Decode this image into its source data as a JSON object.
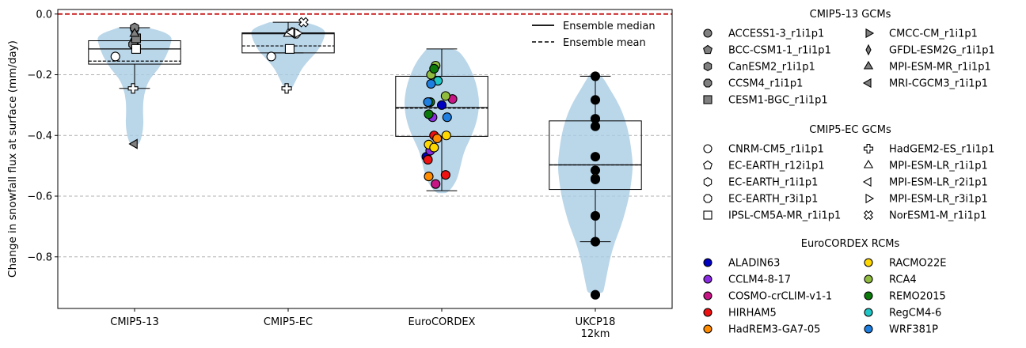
{
  "chart_data": {
    "type": "violin",
    "ylabel": "Change in snowfall flux at surface (mm/day)",
    "categories": [
      "CMIP5-13",
      "CMIP5-EC",
      "EuroCORDEX",
      "UKCP18\n12km"
    ],
    "ylim": [
      -0.97,
      0.015
    ],
    "yticks": [
      0.0,
      -0.2,
      -0.4,
      -0.6,
      -0.8
    ],
    "ytick_labels": [
      "0.0",
      "−0.2",
      "−0.4",
      "−0.6",
      "−0.8"
    ],
    "grid": "horizontal dashed",
    "reference_line": {
      "y": 0.0,
      "color": "#c00000",
      "style": "dashed"
    },
    "violin_color": "#a9cce3",
    "stats_legend": {
      "median_label": "Ensemble median",
      "mean_label": "Ensemble mean",
      "placement": "top-right"
    },
    "groups": [
      {
        "category": "CMIP5-13",
        "violin": {
          "min": -0.43,
          "max": -0.045,
          "widths": [
            [
              -0.045,
              0.22
            ],
            [
              -0.07,
              0.5
            ],
            [
              -0.1,
              0.48
            ],
            [
              -0.14,
              0.42
            ],
            [
              -0.18,
              0.32
            ],
            [
              -0.22,
              0.18
            ],
            [
              -0.27,
              0.12
            ],
            [
              -0.32,
              0.11
            ],
            [
              -0.36,
              0.12
            ],
            [
              -0.4,
              0.1
            ],
            [
              -0.43,
              0.06
            ]
          ]
        },
        "box": {
          "q1": -0.165,
          "median": -0.115,
          "q3": -0.088,
          "whisker_low": -0.245,
          "whisker_high": -0.045,
          "mean": -0.155
        },
        "points": [
          {
            "model": "ACCESS1-3_r1i1p1",
            "y": -0.09,
            "dx": 0.0
          },
          {
            "model": "BCC-CSM1-1_r1i1p1",
            "y": -0.05,
            "dx": 0.0
          },
          {
            "model": "CanESM2_r1i1p1",
            "y": -0.045,
            "dx": 0.0
          },
          {
            "model": "CCSM4_r1i1p1",
            "y": -0.1,
            "dx": -0.02
          },
          {
            "model": "CESM1-BGC_r1i1p1",
            "y": -0.08,
            "dx": 0.02
          },
          {
            "model": "MPI-ESM-MR_r1i1p1",
            "y": -0.065,
            "dx": 0.0
          },
          {
            "model": "MRI-CGCM3_r1i1p1",
            "y": -0.428,
            "dx": 0.0
          },
          {
            "model": "CNRM-CM5_r1i1p1",
            "y": -0.14,
            "dx": -0.25
          },
          {
            "model": "IPSL-CM5A-MR_r1i1p1",
            "y": -0.115,
            "dx": 0.02
          },
          {
            "model": "HadGEM2-ES_r1i1p1",
            "y": -0.245,
            "dx": -0.02
          }
        ]
      },
      {
        "category": "CMIP5-EC",
        "violin": {
          "min": -0.25,
          "max": -0.027,
          "widths": [
            [
              -0.027,
              0.25
            ],
            [
              -0.05,
              0.5
            ],
            [
              -0.08,
              0.48
            ],
            [
              -0.12,
              0.4
            ],
            [
              -0.15,
              0.28
            ],
            [
              -0.18,
              0.18
            ],
            [
              -0.21,
              0.12
            ],
            [
              -0.25,
              0.04
            ]
          ]
        },
        "box": {
          "q1": -0.128,
          "median": -0.065,
          "q3": -0.062,
          "whisker_low": -0.128,
          "whisker_high": -0.027,
          "mean": -0.105
        },
        "points": [
          {
            "model": "CNRM-CM5_r1i1p1",
            "y": -0.14,
            "dx": -0.22
          },
          {
            "model": "EC-EARTH_r12i1p1",
            "y": -0.06,
            "dx": 0.05
          },
          {
            "model": "EC-EARTH_r1i1p1",
            "y": -0.063,
            "dx": 0.08
          },
          {
            "model": "EC-EARTH_r3i1p1",
            "y": -0.065,
            "dx": 0.1
          },
          {
            "model": "IPSL-CM5A-MR_r1i1p1",
            "y": -0.115,
            "dx": 0.02
          },
          {
            "model": "HadGEM2-ES_r1i1p1",
            "y": -0.245,
            "dx": -0.02
          },
          {
            "model": "MPI-ESM-LR_r1i1p1",
            "y": -0.065,
            "dx": 0.0
          },
          {
            "model": "MPI-ESM-LR_r2i1p1",
            "y": -0.06,
            "dx": 0.04
          },
          {
            "model": "MPI-ESM-LR_r3i1p1",
            "y": -0.063,
            "dx": 0.12
          },
          {
            "model": "NorESM1-M_r1i1p1",
            "y": -0.027,
            "dx": 0.2
          }
        ]
      },
      {
        "category": "EuroCORDEX",
        "violin": {
          "min": -0.59,
          "max": -0.115,
          "widths": [
            [
              -0.115,
              0.2
            ],
            [
              -0.15,
              0.32
            ],
            [
              -0.2,
              0.42
            ],
            [
              -0.25,
              0.48
            ],
            [
              -0.3,
              0.5
            ],
            [
              -0.35,
              0.47
            ],
            [
              -0.4,
              0.4
            ],
            [
              -0.45,
              0.3
            ],
            [
              -0.5,
              0.25
            ],
            [
              -0.55,
              0.2
            ],
            [
              -0.59,
              0.08
            ]
          ]
        },
        "box": {
          "q1": -0.403,
          "median": -0.308,
          "q3": -0.205,
          "whisker_low": -0.582,
          "whisker_high": -0.115,
          "mean": -0.31
        },
        "points": [
          {
            "model": "ALADIN63",
            "y": -0.47,
            "dx": -0.2
          },
          {
            "model": "ALADIN63",
            "y": -0.3,
            "dx": 0.0
          },
          {
            "model": "CCLM4-8-17",
            "y": -0.34,
            "dx": -0.12
          },
          {
            "model": "CCLM4-8-17",
            "y": -0.45,
            "dx": -0.15
          },
          {
            "model": "COSMO-crCLIM-v1-1",
            "y": -0.56,
            "dx": -0.08
          },
          {
            "model": "COSMO-crCLIM-v1-1",
            "y": -0.28,
            "dx": 0.14
          },
          {
            "model": "HIRHAM5",
            "y": -0.48,
            "dx": -0.18
          },
          {
            "model": "HIRHAM5",
            "y": -0.53,
            "dx": 0.05
          },
          {
            "model": "HIRHAM5",
            "y": -0.4,
            "dx": -0.1
          },
          {
            "model": "HadREM3-GA7-05",
            "y": -0.535,
            "dx": -0.17
          },
          {
            "model": "HadREM3-GA7-05",
            "y": -0.41,
            "dx": -0.06
          },
          {
            "model": "RACMO22E",
            "y": -0.43,
            "dx": -0.17
          },
          {
            "model": "RACMO22E",
            "y": -0.4,
            "dx": 0.06
          },
          {
            "model": "RACMO22E",
            "y": -0.44,
            "dx": -0.1
          },
          {
            "model": "RCA4",
            "y": -0.2,
            "dx": -0.14
          },
          {
            "model": "RCA4",
            "y": -0.27,
            "dx": 0.05
          },
          {
            "model": "RCA4",
            "y": -0.17,
            "dx": -0.08
          },
          {
            "model": "REMO2015",
            "y": -0.33,
            "dx": -0.17
          },
          {
            "model": "REMO2015",
            "y": -0.29,
            "dx": -0.15
          },
          {
            "model": "REMO2015",
            "y": -0.18,
            "dx": -0.1
          },
          {
            "model": "RegCM4-6",
            "y": -0.22,
            "dx": -0.05
          },
          {
            "model": "WRF381P",
            "y": -0.23,
            "dx": -0.14
          },
          {
            "model": "WRF381P",
            "y": -0.29,
            "dx": -0.18
          },
          {
            "model": "WRF381P",
            "y": -0.34,
            "dx": 0.07
          }
        ]
      },
      {
        "category": "UKCP18\n12km",
        "violin": {
          "min": -0.92,
          "max": -0.2,
          "widths": [
            [
              -0.2,
              0.08
            ],
            [
              -0.25,
              0.2
            ],
            [
              -0.3,
              0.32
            ],
            [
              -0.35,
              0.4
            ],
            [
              -0.4,
              0.45
            ],
            [
              -0.45,
              0.48
            ],
            [
              -0.5,
              0.5
            ],
            [
              -0.55,
              0.48
            ],
            [
              -0.6,
              0.45
            ],
            [
              -0.65,
              0.4
            ],
            [
              -0.7,
              0.34
            ],
            [
              -0.75,
              0.26
            ],
            [
              -0.8,
              0.2
            ],
            [
              -0.85,
              0.16
            ],
            [
              -0.9,
              0.12
            ],
            [
              -0.92,
              0.1
            ]
          ]
        },
        "box": {
          "q1": -0.578,
          "median": -0.497,
          "q3": -0.352,
          "whisker_low": -0.75,
          "whisker_high": -0.205,
          "mean": -0.497
        },
        "points": [
          {
            "model": "UKCP18 member",
            "y": -0.205,
            "dx": 0.0
          },
          {
            "model": "UKCP18 member",
            "y": -0.283,
            "dx": 0.0
          },
          {
            "model": "UKCP18 member",
            "y": -0.345,
            "dx": 0.0
          },
          {
            "model": "UKCP18 member",
            "y": -0.37,
            "dx": 0.0
          },
          {
            "model": "UKCP18 member",
            "y": -0.47,
            "dx": 0.0
          },
          {
            "model": "UKCP18 member",
            "y": -0.515,
            "dx": 0.0
          },
          {
            "model": "UKCP18 member",
            "y": -0.542,
            "dx": 0.0,
            "color": "#ff8c00"
          },
          {
            "model": "UKCP18 member",
            "y": -0.545,
            "dx": 0.0
          },
          {
            "model": "UKCP18 member",
            "y": -0.665,
            "dx": 0.0
          },
          {
            "model": "UKCP18 member",
            "y": -0.75,
            "dx": 0.0
          },
          {
            "model": "UKCP18 member",
            "y": -0.925,
            "dx": 0.0
          }
        ]
      }
    ],
    "legend": {
      "placement": "right",
      "sections": [
        {
          "title": "CMIP5-13 GCMs",
          "items": [
            {
              "label": "ACCESS1-3_r1i1p1",
              "marker": "circle",
              "fill": "#808080"
            },
            {
              "label": "BCC-CSM1-1_r1i1p1",
              "marker": "pentagon",
              "fill": "#808080"
            },
            {
              "label": "CanESM2_r1i1p1",
              "marker": "hexagon",
              "fill": "#808080"
            },
            {
              "label": "CCSM4_r1i1p1",
              "marker": "octagon",
              "fill": "#808080"
            },
            {
              "label": "CESM1-BGC_r1i1p1",
              "marker": "square",
              "fill": "#808080"
            },
            {
              "label": "CMCC-CM_r1i1p1",
              "marker": "triangle-right",
              "fill": "#808080"
            },
            {
              "label": "GFDL-ESM2G_r1i1p1",
              "marker": "thin-diamond",
              "fill": "#808080"
            },
            {
              "label": "MPI-ESM-MR_r1i1p1",
              "marker": "triangle-up",
              "fill": "#808080"
            },
            {
              "label": "MRI-CGCM3_r1i1p1",
              "marker": "triangle-left",
              "fill": "#808080"
            }
          ]
        },
        {
          "title": "CMIP5-EC GCMs",
          "items": [
            {
              "label": "CNRM-CM5_r1i1p1",
              "marker": "circle",
              "fill": "#ffffff"
            },
            {
              "label": "EC-EARTH_r12i1p1",
              "marker": "pentagon",
              "fill": "#ffffff"
            },
            {
              "label": "EC-EARTH_r1i1p1",
              "marker": "hexagon",
              "fill": "#ffffff"
            },
            {
              "label": "EC-EARTH_r3i1p1",
              "marker": "octagon",
              "fill": "#ffffff"
            },
            {
              "label": "IPSL-CM5A-MR_r1i1p1",
              "marker": "square",
              "fill": "#ffffff"
            },
            {
              "label": "HadGEM2-ES_r1i1p1",
              "marker": "plus",
              "fill": "#ffffff"
            },
            {
              "label": "MPI-ESM-LR_r1i1p1",
              "marker": "triangle-up",
              "fill": "#ffffff"
            },
            {
              "label": "MPI-ESM-LR_r2i1p1",
              "marker": "triangle-left",
              "fill": "#ffffff"
            },
            {
              "label": "MPI-ESM-LR_r3i1p1",
              "marker": "triangle-right",
              "fill": "#ffffff"
            },
            {
              "label": "NorESM1-M_r1i1p1",
              "marker": "x",
              "fill": "#ffffff"
            }
          ]
        },
        {
          "title": "EuroCORDEX RCMs",
          "items": [
            {
              "label": "ALADIN63",
              "marker": "circle",
              "fill": "#0000c0"
            },
            {
              "label": "CCLM4-8-17",
              "marker": "circle",
              "fill": "#8a2be2"
            },
            {
              "label": "COSMO-crCLIM-v1-1",
              "marker": "circle",
              "fill": "#c71585"
            },
            {
              "label": "HIRHAM5",
              "marker": "circle",
              "fill": "#ee1111"
            },
            {
              "label": "HadREM3-GA7-05",
              "marker": "circle",
              "fill": "#ff8c00"
            },
            {
              "label": "RACMO22E",
              "marker": "circle",
              "fill": "#ffd700"
            },
            {
              "label": "RCA4",
              "marker": "circle",
              "fill": "#8fbc3f"
            },
            {
              "label": "REMO2015",
              "marker": "circle",
              "fill": "#0b7a0b"
            },
            {
              "label": "RegCM4-6",
              "marker": "circle",
              "fill": "#20c5c5"
            },
            {
              "label": "WRF381P",
              "marker": "circle",
              "fill": "#1e7fe0"
            }
          ]
        }
      ]
    }
  }
}
